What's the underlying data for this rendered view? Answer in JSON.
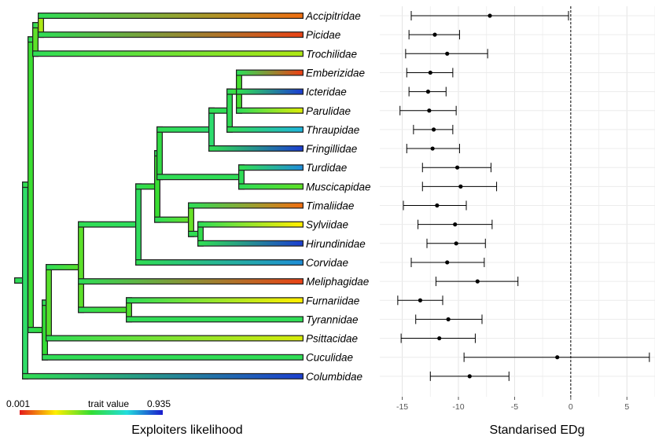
{
  "chart_data": [
    {
      "type": "phylogenetic-tree",
      "taxa": [
        {
          "name": "Accipitridae",
          "trait": 0.1
        },
        {
          "name": "Picidae",
          "trait": 0.05
        },
        {
          "name": "Trochilidae",
          "trait": 0.35
        },
        {
          "name": "Emberizidae",
          "trait": 0.05
        },
        {
          "name": "Icteridae",
          "trait": 0.95
        },
        {
          "name": "Parulidae",
          "trait": 0.3
        },
        {
          "name": "Thraupidae",
          "trait": 0.8
        },
        {
          "name": "Fringillidae",
          "trait": 0.95
        },
        {
          "name": "Turdidae",
          "trait": 0.85
        },
        {
          "name": "Muscicapidae",
          "trait": 0.45
        },
        {
          "name": "Timaliidae",
          "trait": 0.1
        },
        {
          "name": "Sylviidae",
          "trait": 0.25
        },
        {
          "name": "Hirundinidae",
          "trait": 0.95
        },
        {
          "name": "Corvidae",
          "trait": 0.85
        },
        {
          "name": "Meliphagidae",
          "trait": 0.05
        },
        {
          "name": "Furnariidae",
          "trait": 0.25
        },
        {
          "name": "Tyrannidae",
          "trait": 0.55
        },
        {
          "name": "Psittacidae",
          "trait": 0.3
        },
        {
          "name": "Cuculidae",
          "trait": 0.55
        },
        {
          "name": "Columbidae",
          "trait": 0.95
        }
      ],
      "legend": {
        "min_label": "0.001",
        "mid_label": "trait value",
        "max_label": "0.935"
      },
      "xlabel": "Exploiters likelihood"
    },
    {
      "type": "dot-and-whisker",
      "xlabel": "Standarised EDg",
      "xlim": [
        -17,
        7.5
      ],
      "xticks": [
        -15,
        -10,
        -5,
        0,
        5
      ],
      "reference_line": 0,
      "grid": true,
      "points": [
        {
          "category": "Accipitridae",
          "value": -7.2,
          "low": -14.2,
          "high": -0.2
        },
        {
          "category": "Picidae",
          "value": -12.1,
          "low": -14.4,
          "high": -9.9
        },
        {
          "category": "Trochilidae",
          "value": -11.0,
          "low": -14.7,
          "high": -7.4
        },
        {
          "category": "Emberizidae",
          "value": -12.5,
          "low": -14.6,
          "high": -10.5
        },
        {
          "category": "Icteridae",
          "value": -12.7,
          "low": -14.4,
          "high": -11.1
        },
        {
          "category": "Parulidae",
          "value": -12.6,
          "low": -15.2,
          "high": -10.2
        },
        {
          "category": "Thraupidae",
          "value": -12.2,
          "low": -14.0,
          "high": -10.5
        },
        {
          "category": "Fringillidae",
          "value": -12.3,
          "low": -14.6,
          "high": -9.9
        },
        {
          "category": "Turdidae",
          "value": -10.1,
          "low": -13.2,
          "high": -7.1
        },
        {
          "category": "Muscicapidae",
          "value": -9.8,
          "low": -13.2,
          "high": -6.6
        },
        {
          "category": "Timaliidae",
          "value": -11.9,
          "low": -14.9,
          "high": -9.3
        },
        {
          "category": "Sylviidae",
          "value": -10.3,
          "low": -13.6,
          "high": -7.0
        },
        {
          "category": "Hirundinidae",
          "value": -10.2,
          "low": -12.8,
          "high": -7.6
        },
        {
          "category": "Corvidae",
          "value": -11.0,
          "low": -14.2,
          "high": -7.7
        },
        {
          "category": "Meliphagidae",
          "value": -8.3,
          "low": -12.0,
          "high": -4.7
        },
        {
          "category": "Furnariidae",
          "value": -13.4,
          "low": -15.4,
          "high": -11.4
        },
        {
          "category": "Tyrannidae",
          "value": -10.9,
          "low": -13.8,
          "high": -7.9
        },
        {
          "category": "Psittacidae",
          "value": -11.7,
          "low": -15.1,
          "high": -8.5
        },
        {
          "category": "Cuculidae",
          "value": -1.2,
          "low": -9.5,
          "high": 7.0
        },
        {
          "category": "Columbidae",
          "value": -9.0,
          "low": -12.5,
          "high": -5.5
        }
      ]
    }
  ]
}
